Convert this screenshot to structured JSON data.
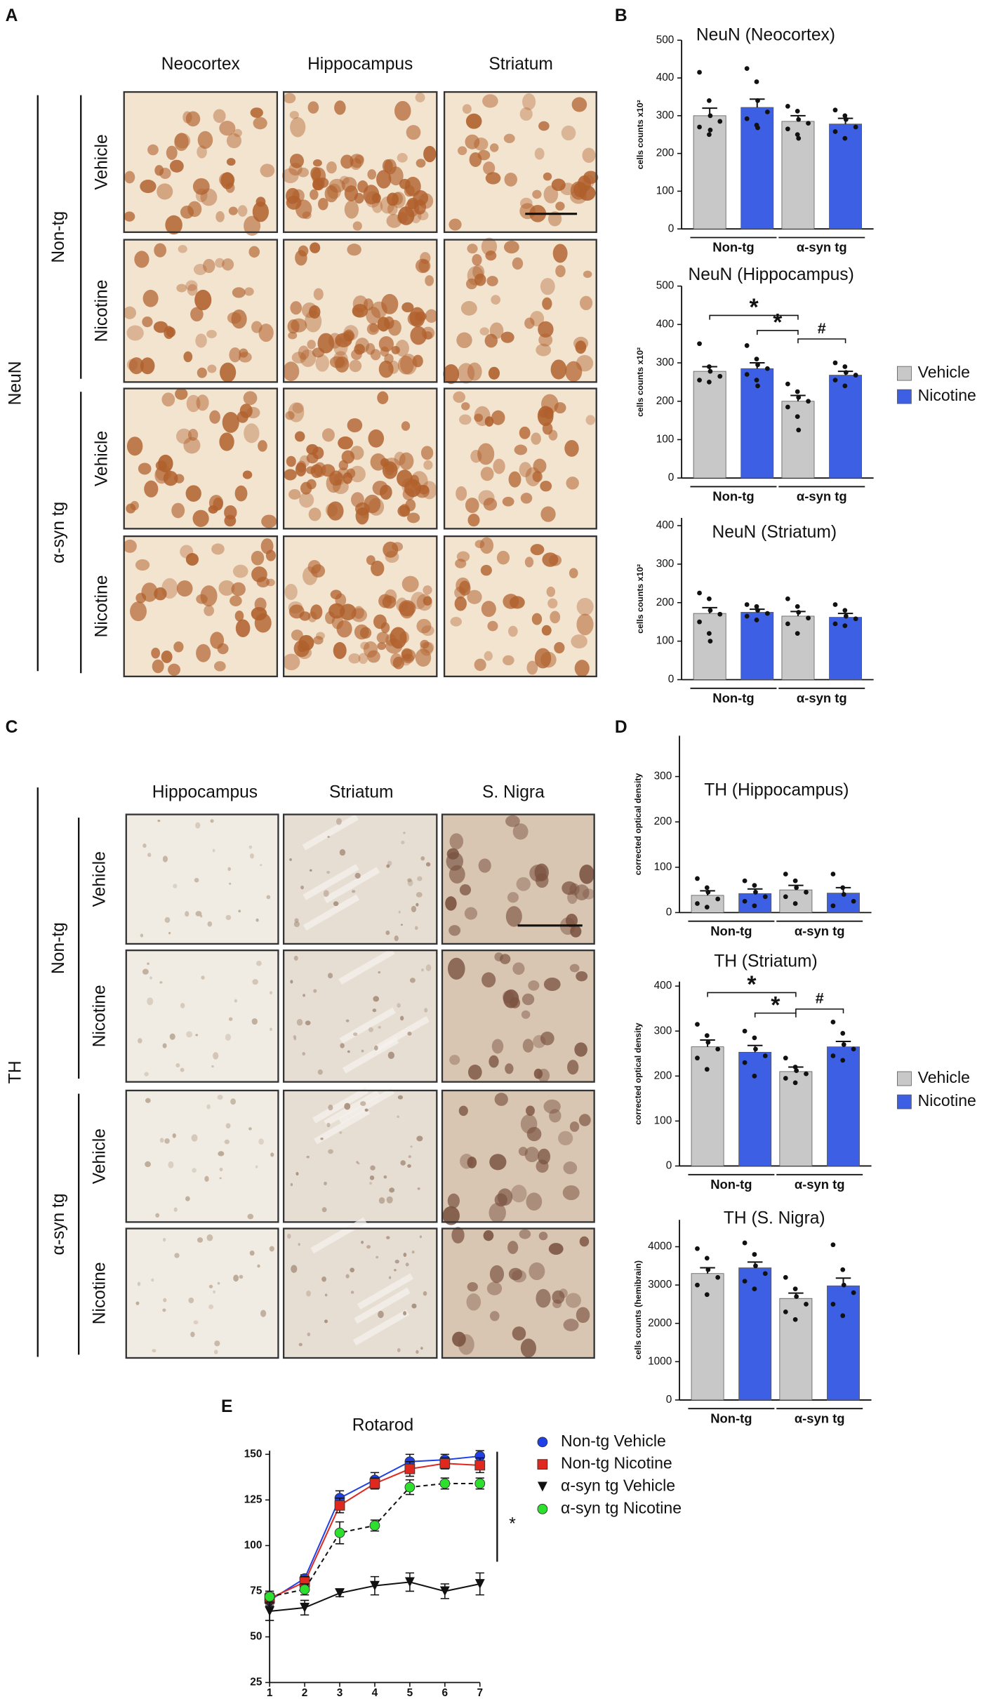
{
  "panels": {
    "A": {
      "letter": "A",
      "marker": "NeuN",
      "columns": [
        "Neocortex",
        "Hippocampus",
        "Striatum"
      ],
      "groups": [
        "Non-tg",
        "α-syn tg"
      ],
      "rows": [
        "Vehicle",
        "Nicotine"
      ]
    },
    "C": {
      "letter": "C",
      "marker": "TH",
      "columns": [
        "Hippocampus",
        "Striatum",
        "S. Nigra"
      ],
      "groups": [
        "Non-tg",
        "α-syn tg"
      ],
      "rows": [
        "Vehicle",
        "Nicotine"
      ]
    }
  },
  "chart_data": [
    {
      "panel": "B",
      "type": "bar",
      "title": "NeuN (Neocortex)",
      "y_label": "cells counts x10²",
      "categories": [
        "Non-tg",
        "α-syn tg"
      ],
      "ylim": [
        0,
        500
      ],
      "yticks": [
        0,
        100,
        200,
        300,
        400,
        500
      ],
      "series": [
        {
          "name": "Vehicle",
          "color": "#c8c8c8",
          "values": [
            300,
            285
          ],
          "errors": [
            20,
            15
          ],
          "points": [
            [
              415,
              340,
              300,
              285,
              270,
              250,
              262
            ],
            [
              325,
              312,
              290,
              280,
              265,
              250,
              240
            ]
          ]
        },
        {
          "name": "Nicotine",
          "color": "#3d5fe3",
          "values": [
            322,
            278
          ],
          "errors": [
            22,
            15
          ],
          "points": [
            [
              425,
              390,
              340,
              310,
              292,
              275,
              268
            ],
            [
              315,
              300,
              290,
              270,
              258,
              240
            ]
          ]
        }
      ]
    },
    {
      "type": "bar",
      "title": "NeuN (Hippocampus)",
      "y_label": "cells counts x10²",
      "categories": [
        "Non-tg",
        "α-syn tg"
      ],
      "ylim": [
        0,
        500
      ],
      "yticks": [
        0,
        100,
        200,
        300,
        400,
        500
      ],
      "series": [
        {
          "name": "Vehicle",
          "color": "#c8c8c8",
          "values": [
            278,
            200
          ],
          "errors": [
            12,
            15
          ],
          "points": [
            [
              350,
              290,
              278,
              265,
              255,
              250
            ],
            [
              245,
              225,
              210,
              200,
              185,
              160,
              125
            ]
          ]
        },
        {
          "name": "Nicotine",
          "color": "#3d5fe3",
          "values": [
            285,
            268
          ],
          "errors": [
            15,
            10
          ],
          "points": [
            [
              345,
              310,
              295,
              285,
              270,
              255,
              240
            ],
            [
              300,
              290,
              275,
              268,
              255,
              240
            ]
          ]
        }
      ],
      "annotations": [
        {
          "text": "*",
          "bars": [
            0,
            2
          ]
        },
        {
          "text": "*",
          "bars": [
            1,
            2
          ]
        },
        {
          "text": "#",
          "bars": [
            2,
            3
          ]
        }
      ]
    },
    {
      "type": "bar",
      "title": "NeuN (Striatum)",
      "y_label": "cells counts x10²",
      "categories": [
        "Non-tg",
        "α-syn tg"
      ],
      "ylim": [
        0,
        420
      ],
      "yticks": [
        0,
        100,
        200,
        300,
        400
      ],
      "series": [
        {
          "name": "Vehicle",
          "color": "#c8c8c8",
          "values": [
            172,
            165
          ],
          "errors": [
            15,
            12
          ],
          "points": [
            [
              225,
              210,
              180,
              170,
              150,
              120,
              100
            ],
            [
              210,
              190,
              175,
              160,
              145,
              120
            ]
          ]
        },
        {
          "name": "Nicotine",
          "color": "#3d5fe3",
          "values": [
            175,
            162
          ],
          "errors": [
            8,
            10
          ],
          "points": [
            [
              195,
              190,
              180,
              172,
              165,
              155
            ],
            [
              195,
              180,
              165,
              158,
              145,
              140
            ]
          ]
        }
      ]
    },
    {
      "panel": "D",
      "type": "bar",
      "title": "TH (Hippocampus)",
      "y_label": "corrected optical density",
      "categories": [
        "Non-tg",
        "α-syn tg"
      ],
      "ylim": [
        0,
        390
      ],
      "yticks": [
        0,
        100,
        200,
        300
      ],
      "series": [
        {
          "name": "Vehicle",
          "color": "#c8c8c8",
          "values": [
            38,
            50
          ],
          "errors": [
            10,
            10
          ],
          "points": [
            [
              75,
              55,
              45,
              30,
              20,
              12
            ],
            [
              85,
              70,
              55,
              45,
              35,
              20
            ]
          ]
        },
        {
          "name": "Nicotine",
          "color": "#3d5fe3",
          "values": [
            42,
            43
          ],
          "errors": [
            10,
            12
          ],
          "points": [
            [
              70,
              60,
              45,
              35,
              25,
              15
            ],
            [
              85,
              55,
              40,
              25,
              15
            ]
          ]
        }
      ]
    },
    {
      "type": "bar",
      "title": "TH (Striatum)",
      "y_label": "corrected optical density",
      "categories": [
        "Non-tg",
        "α-syn tg"
      ],
      "ylim": [
        0,
        410
      ],
      "yticks": [
        0,
        100,
        200,
        300,
        400
      ],
      "series": [
        {
          "name": "Vehicle",
          "color": "#c8c8c8",
          "values": [
            265,
            210
          ],
          "errors": [
            15,
            10
          ],
          "points": [
            [
              315,
              290,
              275,
              260,
              240,
              215
            ],
            [
              240,
              220,
              212,
              205,
              195,
              185
            ]
          ]
        },
        {
          "name": "Nicotine",
          "color": "#3d5fe3",
          "values": [
            253,
            265
          ],
          "errors": [
            15,
            12
          ],
          "points": [
            [
              300,
              285,
              260,
              245,
              230,
              200
            ],
            [
              320,
              295,
              270,
              260,
              245,
              235
            ]
          ]
        }
      ],
      "annotations": [
        {
          "text": "*",
          "bars": [
            0,
            2
          ]
        },
        {
          "text": "*",
          "bars": [
            1,
            2
          ]
        },
        {
          "text": "#",
          "bars": [
            2,
            3
          ]
        }
      ]
    },
    {
      "type": "bar",
      "title": "TH (S. Nigra)",
      "y_label": "cells counts (hemibrain)",
      "categories": [
        "Non-tg",
        "α-syn tg"
      ],
      "ylim": [
        0,
        4700
      ],
      "yticks": [
        0,
        1000,
        2000,
        3000,
        4000
      ],
      "series": [
        {
          "name": "Vehicle",
          "color": "#c8c8c8",
          "values": [
            3300,
            2650
          ],
          "errors": [
            150,
            140
          ],
          "points": [
            [
              3950,
              3700,
              3400,
              3200,
              3000,
              2750
            ],
            [
              3200,
              2900,
              2700,
              2500,
              2300,
              2100
            ]
          ]
        },
        {
          "name": "Nicotine",
          "color": "#3d5fe3",
          "values": [
            3450,
            2980
          ],
          "errors": [
            150,
            200
          ],
          "points": [
            [
              4100,
              3800,
              3500,
              3300,
              3100,
              2900
            ],
            [
              4050,
              3400,
              3000,
              2800,
              2500,
              2200
            ]
          ]
        }
      ]
    },
    {
      "panel": "E",
      "type": "line",
      "title": "Rotarod",
      "x": [
        1,
        2,
        3,
        4,
        5,
        6,
        7
      ],
      "xlim": [
        1,
        7
      ],
      "xticks": [
        1,
        2,
        3,
        4,
        5,
        6,
        7
      ],
      "ylim": [
        25,
        152
      ],
      "yticks": [
        25,
        50,
        75,
        100,
        125,
        150
      ],
      "series": [
        {
          "name": "Non-tg Vehicle",
          "color": "#1f3fe8",
          "marker": "circle",
          "dashed": false,
          "values": [
            70,
            82,
            126,
            136,
            146,
            147,
            149
          ],
          "errors": [
            3,
            2,
            4,
            4,
            4,
            3,
            3
          ]
        },
        {
          "name": "Non-tg Nicotine",
          "color": "#e0281e",
          "marker": "square",
          "dashed": false,
          "values": [
            71,
            80,
            122,
            134,
            142,
            145,
            144
          ],
          "errors": [
            3,
            3,
            4,
            3,
            4,
            3,
            4
          ]
        },
        {
          "name": "α-syn tg Vehicle",
          "color": "#111111",
          "marker": "triangle",
          "dashed": false,
          "values": [
            64,
            66,
            74,
            78,
            80,
            75,
            79
          ],
          "errors": [
            5,
            4,
            2,
            5,
            5,
            4,
            6
          ]
        },
        {
          "name": "α-syn tg Nicotine",
          "color": "#2ee02e",
          "marker": "circle",
          "dashed": true,
          "values": [
            72,
            76,
            107,
            111,
            132,
            134,
            134
          ],
          "errors": [
            3,
            3,
            6,
            3,
            4,
            3,
            3
          ]
        }
      ],
      "annotation": "*"
    }
  ]
}
